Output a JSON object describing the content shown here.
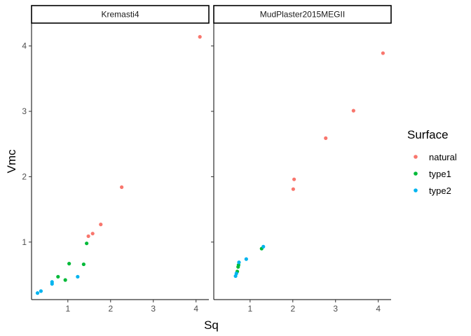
{
  "chart_data": {
    "type": "scatter",
    "xlabel": "Sq",
    "ylabel": "Vmc",
    "xlim": [
      0.15,
      4.3
    ],
    "ylim": [
      0.12,
      4.35
    ],
    "x_ticks": [
      1,
      2,
      3,
      4
    ],
    "y_ticks": [
      1,
      2,
      3,
      4
    ],
    "grid": false,
    "legend": {
      "title": "Surface",
      "position": "right",
      "entries": [
        "natural",
        "type1",
        "type2"
      ]
    },
    "colors": {
      "natural": "#F8766D",
      "type1": "#00BA38",
      "type2": "#00B4EF"
    },
    "facets": [
      {
        "label": "Kremasti4",
        "points": [
          {
            "x": 4.09,
            "y": 4.14,
            "group": "natural"
          },
          {
            "x": 2.26,
            "y": 1.84,
            "group": "natural"
          },
          {
            "x": 1.77,
            "y": 1.27,
            "group": "natural"
          },
          {
            "x": 1.58,
            "y": 1.13,
            "group": "natural"
          },
          {
            "x": 1.48,
            "y": 1.09,
            "group": "natural"
          },
          {
            "x": 1.44,
            "y": 0.98,
            "group": "type1"
          },
          {
            "x": 1.37,
            "y": 0.66,
            "group": "type1"
          },
          {
            "x": 1.03,
            "y": 0.67,
            "group": "type1"
          },
          {
            "x": 0.77,
            "y": 0.47,
            "group": "type1"
          },
          {
            "x": 0.94,
            "y": 0.42,
            "group": "type1"
          },
          {
            "x": 1.23,
            "y": 0.47,
            "group": "type2"
          },
          {
            "x": 0.63,
            "y": 0.39,
            "group": "type2"
          },
          {
            "x": 0.63,
            "y": 0.36,
            "group": "type2"
          },
          {
            "x": 0.37,
            "y": 0.25,
            "group": "type2"
          },
          {
            "x": 0.29,
            "y": 0.22,
            "group": "type2"
          }
        ]
      },
      {
        "label": "MudPlaster2015MEGII",
        "points": [
          {
            "x": 4.11,
            "y": 3.89,
            "group": "natural"
          },
          {
            "x": 3.42,
            "y": 3.01,
            "group": "natural"
          },
          {
            "x": 2.77,
            "y": 2.59,
            "group": "natural"
          },
          {
            "x": 2.03,
            "y": 1.96,
            "group": "natural"
          },
          {
            "x": 2.01,
            "y": 1.81,
            "group": "natural"
          },
          {
            "x": 1.27,
            "y": 0.9,
            "group": "type1"
          },
          {
            "x": 0.73,
            "y": 0.65,
            "group": "type1"
          },
          {
            "x": 0.72,
            "y": 0.62,
            "group": "type1"
          },
          {
            "x": 0.7,
            "y": 0.55,
            "group": "type1"
          },
          {
            "x": 1.31,
            "y": 0.93,
            "group": "type2"
          },
          {
            "x": 0.91,
            "y": 0.74,
            "group": "type2"
          },
          {
            "x": 0.74,
            "y": 0.69,
            "group": "type2"
          },
          {
            "x": 0.68,
            "y": 0.52,
            "group": "type2"
          },
          {
            "x": 0.66,
            "y": 0.48,
            "group": "type2"
          }
        ]
      }
    ]
  }
}
